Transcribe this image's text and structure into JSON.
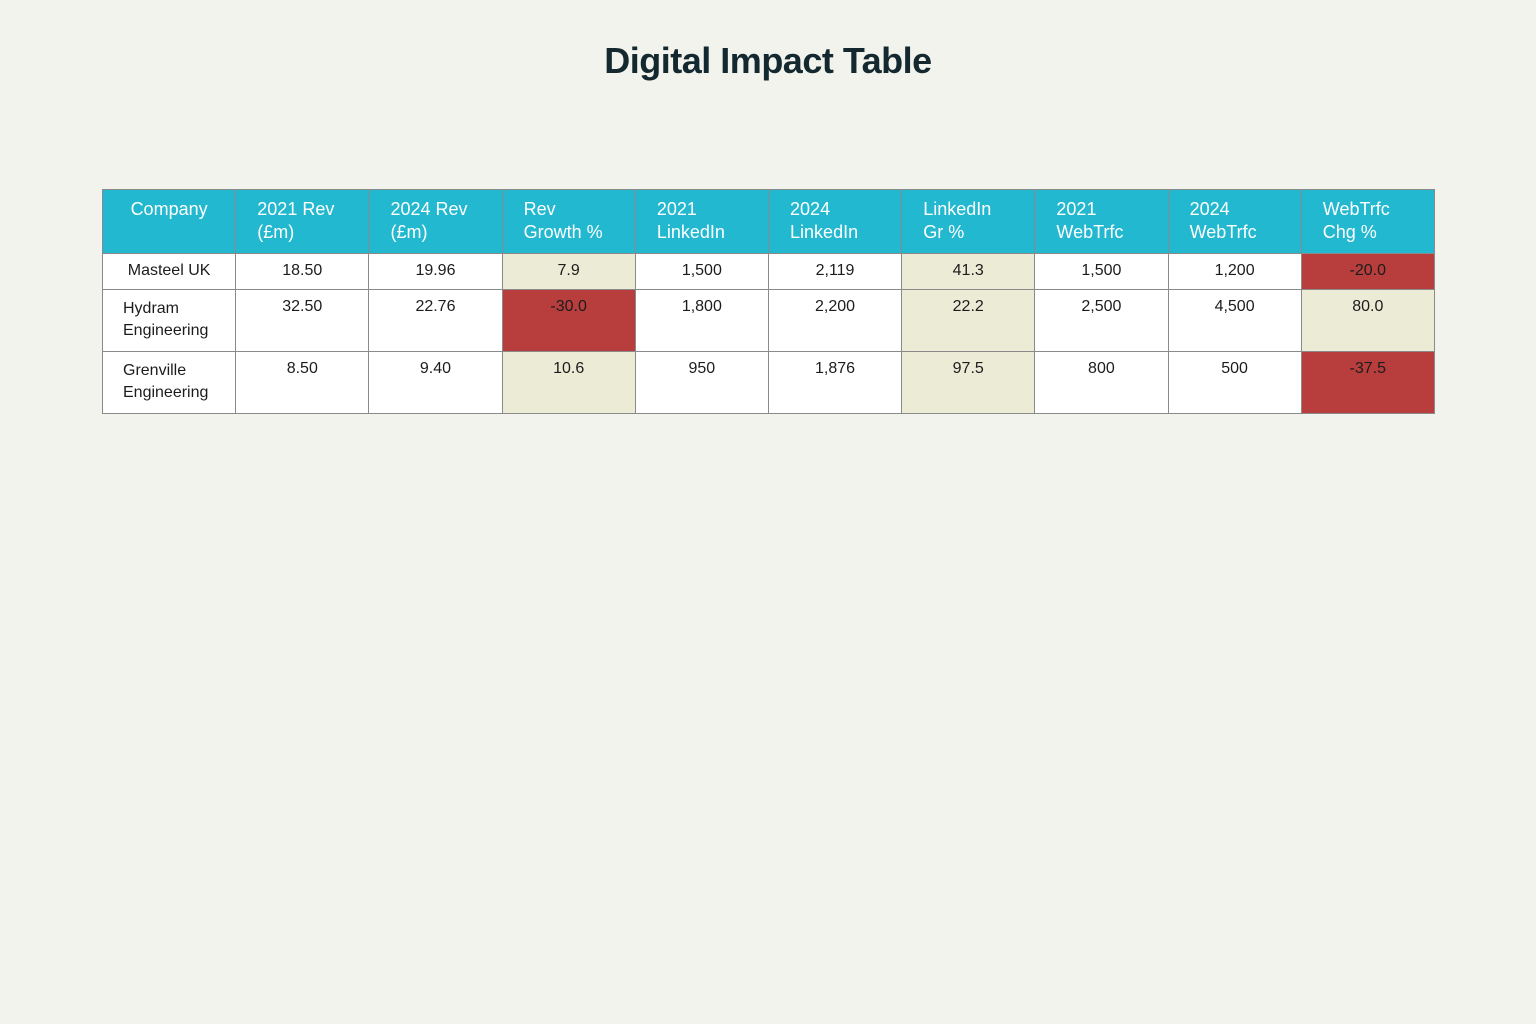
{
  "title": "Digital Impact Table",
  "colors": {
    "header": "#22b8d0",
    "positive_highlight": "#ecebd6",
    "negative_highlight": "#b83e3e",
    "background": "#f3f3ee"
  },
  "chart_data": {
    "type": "table",
    "title": "Digital Impact Table",
    "columns": [
      "Company",
      "2021 Rev (£m)",
      "2024 Rev (£m)",
      "Rev Growth %",
      "2021 LinkedIn",
      "2024 LinkedIn",
      "LinkedIn Gr %",
      "2021 WebTrfc",
      "2024 WebTrfc",
      "WebTrfc Chg %"
    ],
    "rows": [
      [
        "Masteel UK",
        "18.50",
        "19.96",
        "7.9",
        "1,500",
        "2,119",
        "41.3",
        "1,500",
        "1,200",
        "-20.0"
      ],
      [
        "Hydram Engineering",
        "32.50",
        "22.76",
        "-30.0",
        "1,800",
        "2,200",
        "22.2",
        "2,500",
        "4,500",
        "80.0"
      ],
      [
        "Grenville Engineering",
        "8.50",
        "9.40",
        "10.6",
        "950",
        "1,876",
        "97.5",
        "800",
        "500",
        "-37.5"
      ]
    ]
  }
}
